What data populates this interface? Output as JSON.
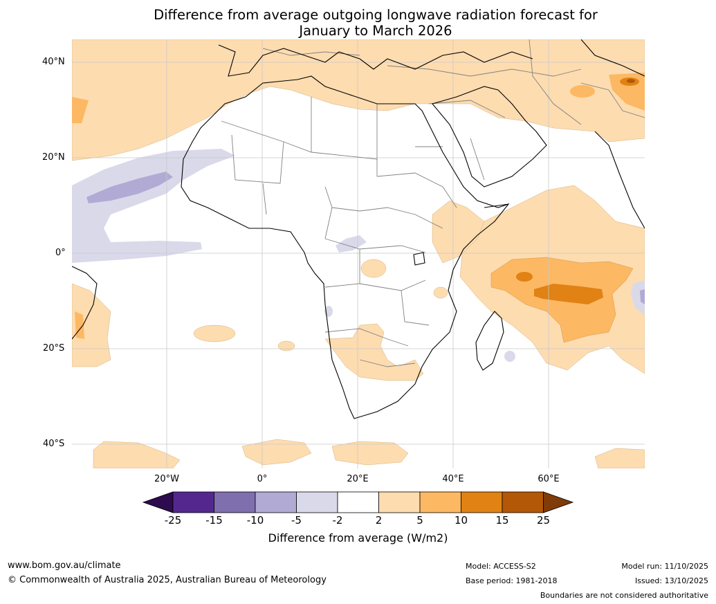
{
  "title": {
    "line1": "Difference from average outgoing longwave radiation forecast for",
    "line2": "January to March 2026"
  },
  "map": {
    "region": "Africa",
    "lat_labels": [
      "40°N",
      "20°N",
      "0°",
      "20°S",
      "40°S"
    ],
    "lon_labels": [
      "20°W",
      "0°",
      "20°E",
      "40°E",
      "60°E"
    ]
  },
  "legend": {
    "ticks": [
      "-25",
      "-15",
      "-10",
      "-5",
      "-2",
      "2",
      "5",
      "10",
      "15",
      "25"
    ],
    "title": "Difference from average (W/m2)",
    "colors": [
      "#2e0a4f",
      "#54278f",
      "#7f6faf",
      "#b0aad4",
      "#d9d9ea",
      "#ffffff",
      "#fddcb0",
      "#fdb863",
      "#e08214",
      "#b35806",
      "#7f3b08"
    ]
  },
  "footer": {
    "website": "www.bom.gov.au/climate",
    "copyright": "© Commonwealth of Australia 2025, Australian Bureau of Meteorology",
    "model": "Model: ACCESS-S2",
    "base_period": "Base period: 1981-2018",
    "model_run": "Model run: 11/10/2025",
    "issued": "Issued: 13/10/2025",
    "disclaimer": "Boundaries are not considered authoritative"
  }
}
